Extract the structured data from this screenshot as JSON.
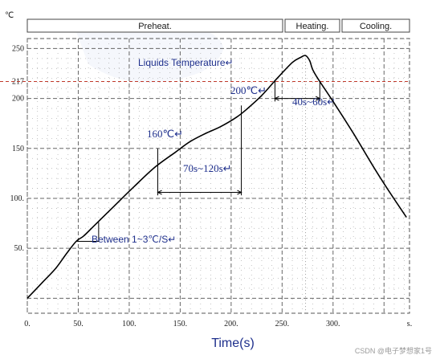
{
  "chart_data": {
    "type": "line",
    "title": "",
    "xlabel": "Time(s)",
    "ylabel": "℃",
    "xlim": [
      0,
      375
    ],
    "ylim": [
      -15,
      260
    ],
    "x_ticks": [
      {
        "value": 0,
        "label": "0."
      },
      {
        "value": 50,
        "label": "50."
      },
      {
        "value": 100,
        "label": "100."
      },
      {
        "value": 150,
        "label": "150."
      },
      {
        "value": 200,
        "label": "200."
      },
      {
        "value": 250,
        "label": "250."
      },
      {
        "value": 300,
        "label": "300."
      },
      {
        "value": 375,
        "label": "s."
      }
    ],
    "y_ticks": [
      {
        "value": 50,
        "label": "50."
      },
      {
        "value": 100,
        "label": "100."
      },
      {
        "value": 150,
        "label": "150"
      },
      {
        "value": 200,
        "label": "200"
      },
      {
        "value": 217,
        "label": "217"
      },
      {
        "value": 250,
        "label": "250"
      }
    ],
    "grid": true,
    "series": [
      {
        "color": "#000000",
        "points": [
          [
            0,
            0
          ],
          [
            15,
            16
          ],
          [
            28,
            30
          ],
          [
            38,
            44
          ],
          [
            48,
            57
          ],
          [
            55,
            62
          ],
          [
            65,
            72
          ],
          [
            85,
            92
          ],
          [
            105,
            112
          ],
          [
            125,
            131
          ],
          [
            145,
            146
          ],
          [
            160,
            157
          ],
          [
            175,
            165
          ],
          [
            190,
            172
          ],
          [
            205,
            181
          ],
          [
            215,
            189
          ],
          [
            230,
            203
          ],
          [
            245,
            220
          ],
          [
            260,
            236
          ],
          [
            268,
            241
          ],
          [
            273,
            243
          ],
          [
            277,
            238
          ],
          [
            280,
            229
          ],
          [
            285,
            220
          ],
          [
            300,
            197
          ],
          [
            320,
            165
          ],
          [
            340,
            131
          ],
          [
            355,
            107
          ],
          [
            372,
            81
          ]
        ]
      }
    ],
    "phases": [
      {
        "label": "Preheat.",
        "x_start": 0,
        "x_end": 243
      },
      {
        "label": "Heating.",
        "x_start": 243,
        "x_end": 299
      },
      {
        "label": "Cooling.",
        "x_start": 299,
        "x_end": 375
      }
    ],
    "reference_line": {
      "value": 217,
      "label": "Liquids Temperature↵",
      "color": "#c0392b"
    },
    "annotations": {
      "slope": "Between 1~3℃/S↵",
      "t160": "160℃↵",
      "t200": "200℃↵",
      "d70": "70s~120s↵",
      "d40": "40s~60s↵"
    },
    "watermark": "CSDN @电子梦想家1号"
  }
}
